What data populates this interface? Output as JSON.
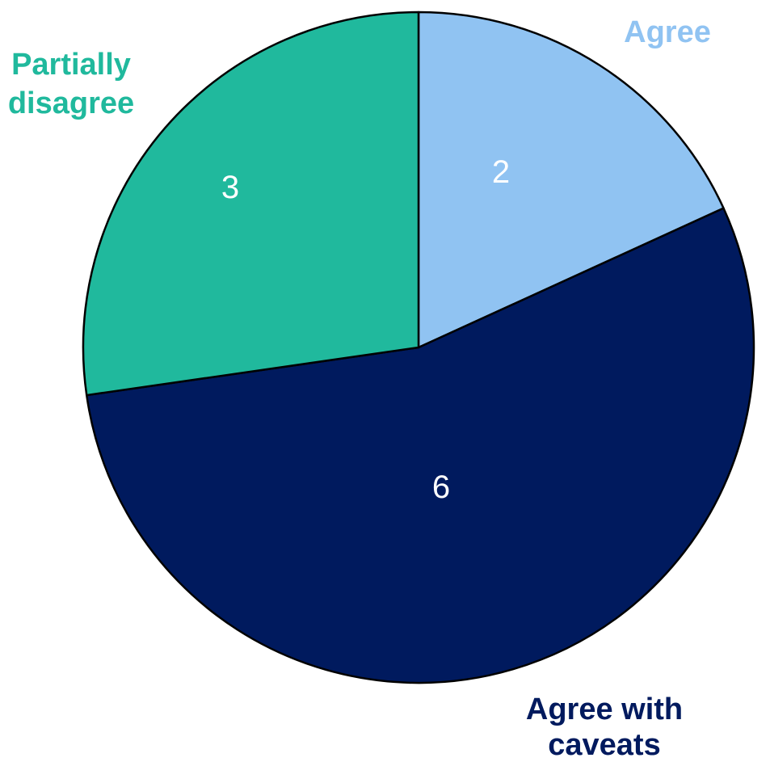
{
  "chart_data": {
    "type": "pie",
    "title": "",
    "slices": [
      {
        "label": "Agree",
        "value": 2,
        "color": "#90C3F2"
      },
      {
        "label": "Agree with caveats",
        "value": 6,
        "color": "#001A5E"
      },
      {
        "label": "Partially disagree",
        "value": 3,
        "color": "#20B99D"
      }
    ],
    "start_angle": "12 o'clock",
    "direction": "clockwise",
    "labels_outside": true,
    "value_labels_inside": true
  }
}
